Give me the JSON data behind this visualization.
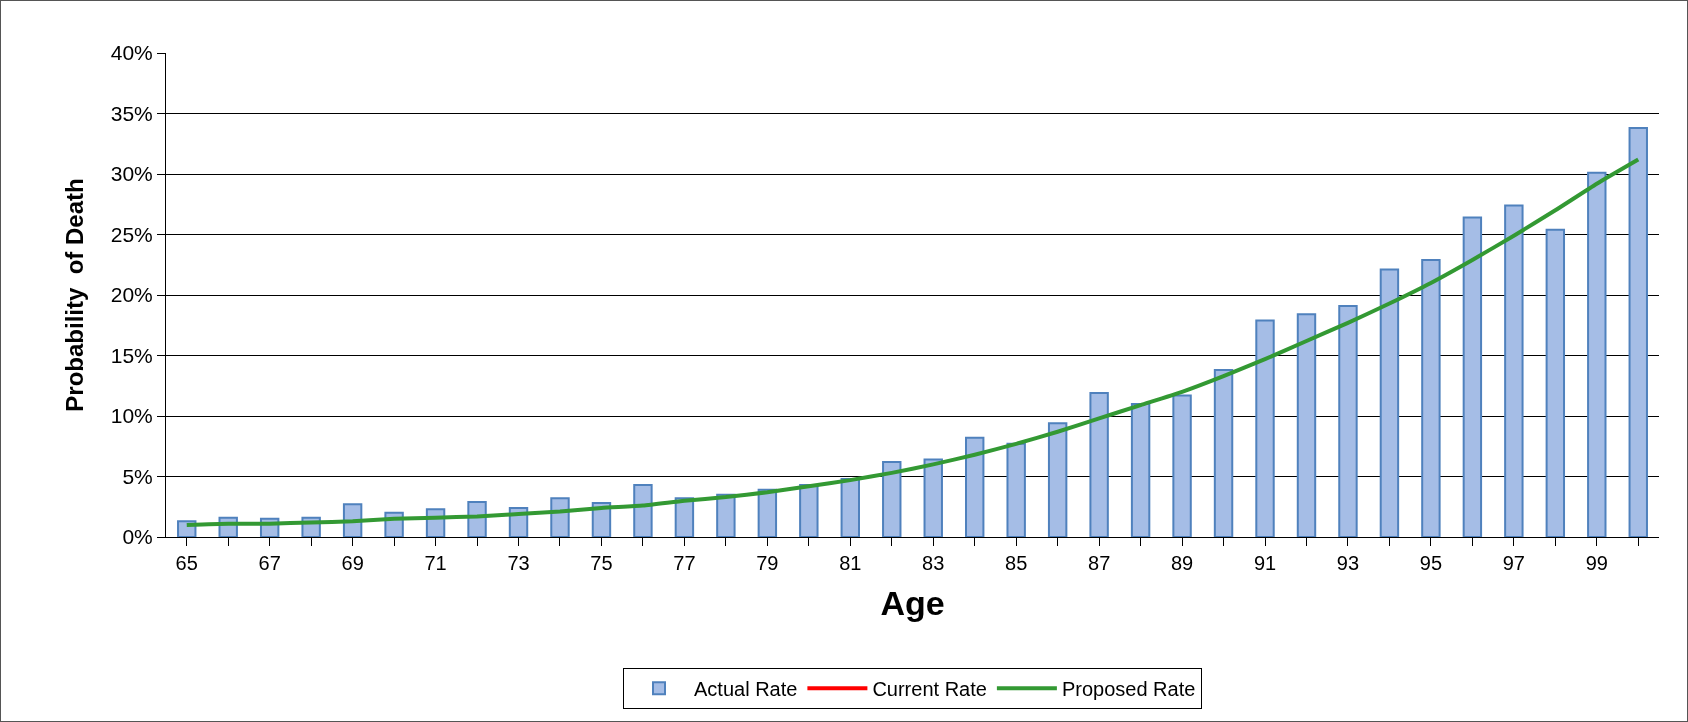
{
  "chart_data": {
    "type": "bar",
    "xlabel": "Age",
    "ylabel": "Probability  of Death",
    "categories": [
      "65",
      null,
      "67",
      null,
      "69",
      null,
      "71",
      null,
      "73",
      null,
      "75",
      null,
      "77",
      null,
      "79",
      null,
      "81",
      null,
      "83",
      null,
      "85",
      null,
      "87",
      null,
      "89",
      null,
      "91",
      null,
      "93",
      null,
      "95",
      null,
      "97",
      null,
      "99",
      null
    ],
    "series": [
      {
        "name": "Actual Rate",
        "color": "#a5bde6",
        "values": [
          1.3,
          1.6,
          1.5,
          1.6,
          2.7,
          2.0,
          2.3,
          2.9,
          2.4,
          3.2,
          2.8,
          4.3,
          3.2,
          3.5,
          3.9,
          4.3,
          4.8,
          6.2,
          6.4,
          8.2,
          7.7,
          9.4,
          11.9,
          11.0,
          11.7,
          13.8,
          17.9,
          18.4,
          19.1,
          22.1,
          22.9,
          26.4,
          27.4,
          25.4,
          30.1,
          33.8
        ]
      },
      {
        "name": "Current Rate",
        "type": "line",
        "color": "#ff0000",
        "values": [
          null,
          null,
          null,
          null,
          null,
          null,
          null,
          null,
          null,
          null,
          null,
          null,
          null,
          null,
          null,
          null,
          null,
          null,
          null,
          null,
          null,
          null,
          null,
          null,
          null,
          null,
          null,
          null,
          null,
          null,
          null,
          null,
          null,
          null,
          null,
          null
        ]
      },
      {
        "name": "Proposed Rate",
        "type": "line",
        "color": "#339933",
        "values": [
          1.0,
          1.1,
          1.1,
          1.2,
          1.3,
          1.5,
          1.6,
          1.7,
          1.9,
          2.1,
          2.4,
          2.6,
          3.0,
          3.3,
          3.7,
          4.2,
          4.7,
          5.3,
          6.0,
          6.8,
          7.7,
          8.7,
          9.8,
          10.9,
          12.0,
          13.3,
          14.7,
          16.2,
          17.7,
          19.3,
          21.0,
          22.9,
          24.9,
          27.0,
          29.2,
          31.2
        ]
      }
    ],
    "ylim": [
      0,
      40
    ],
    "yticks": [
      {
        "value": 0,
        "label": "0%"
      },
      {
        "value": 5,
        "label": "5%"
      },
      {
        "value": 10,
        "label": "10%"
      },
      {
        "value": 15,
        "label": "15%"
      },
      {
        "value": 20,
        "label": "20%"
      },
      {
        "value": 25,
        "label": "25%"
      },
      {
        "value": 30,
        "label": "30%"
      },
      {
        "value": 35,
        "label": "35%"
      },
      {
        "value": 40,
        "label": "40%"
      }
    ],
    "grid": "y",
    "legend": "bottom",
    "marker": "none",
    "line_style": "solid"
  }
}
